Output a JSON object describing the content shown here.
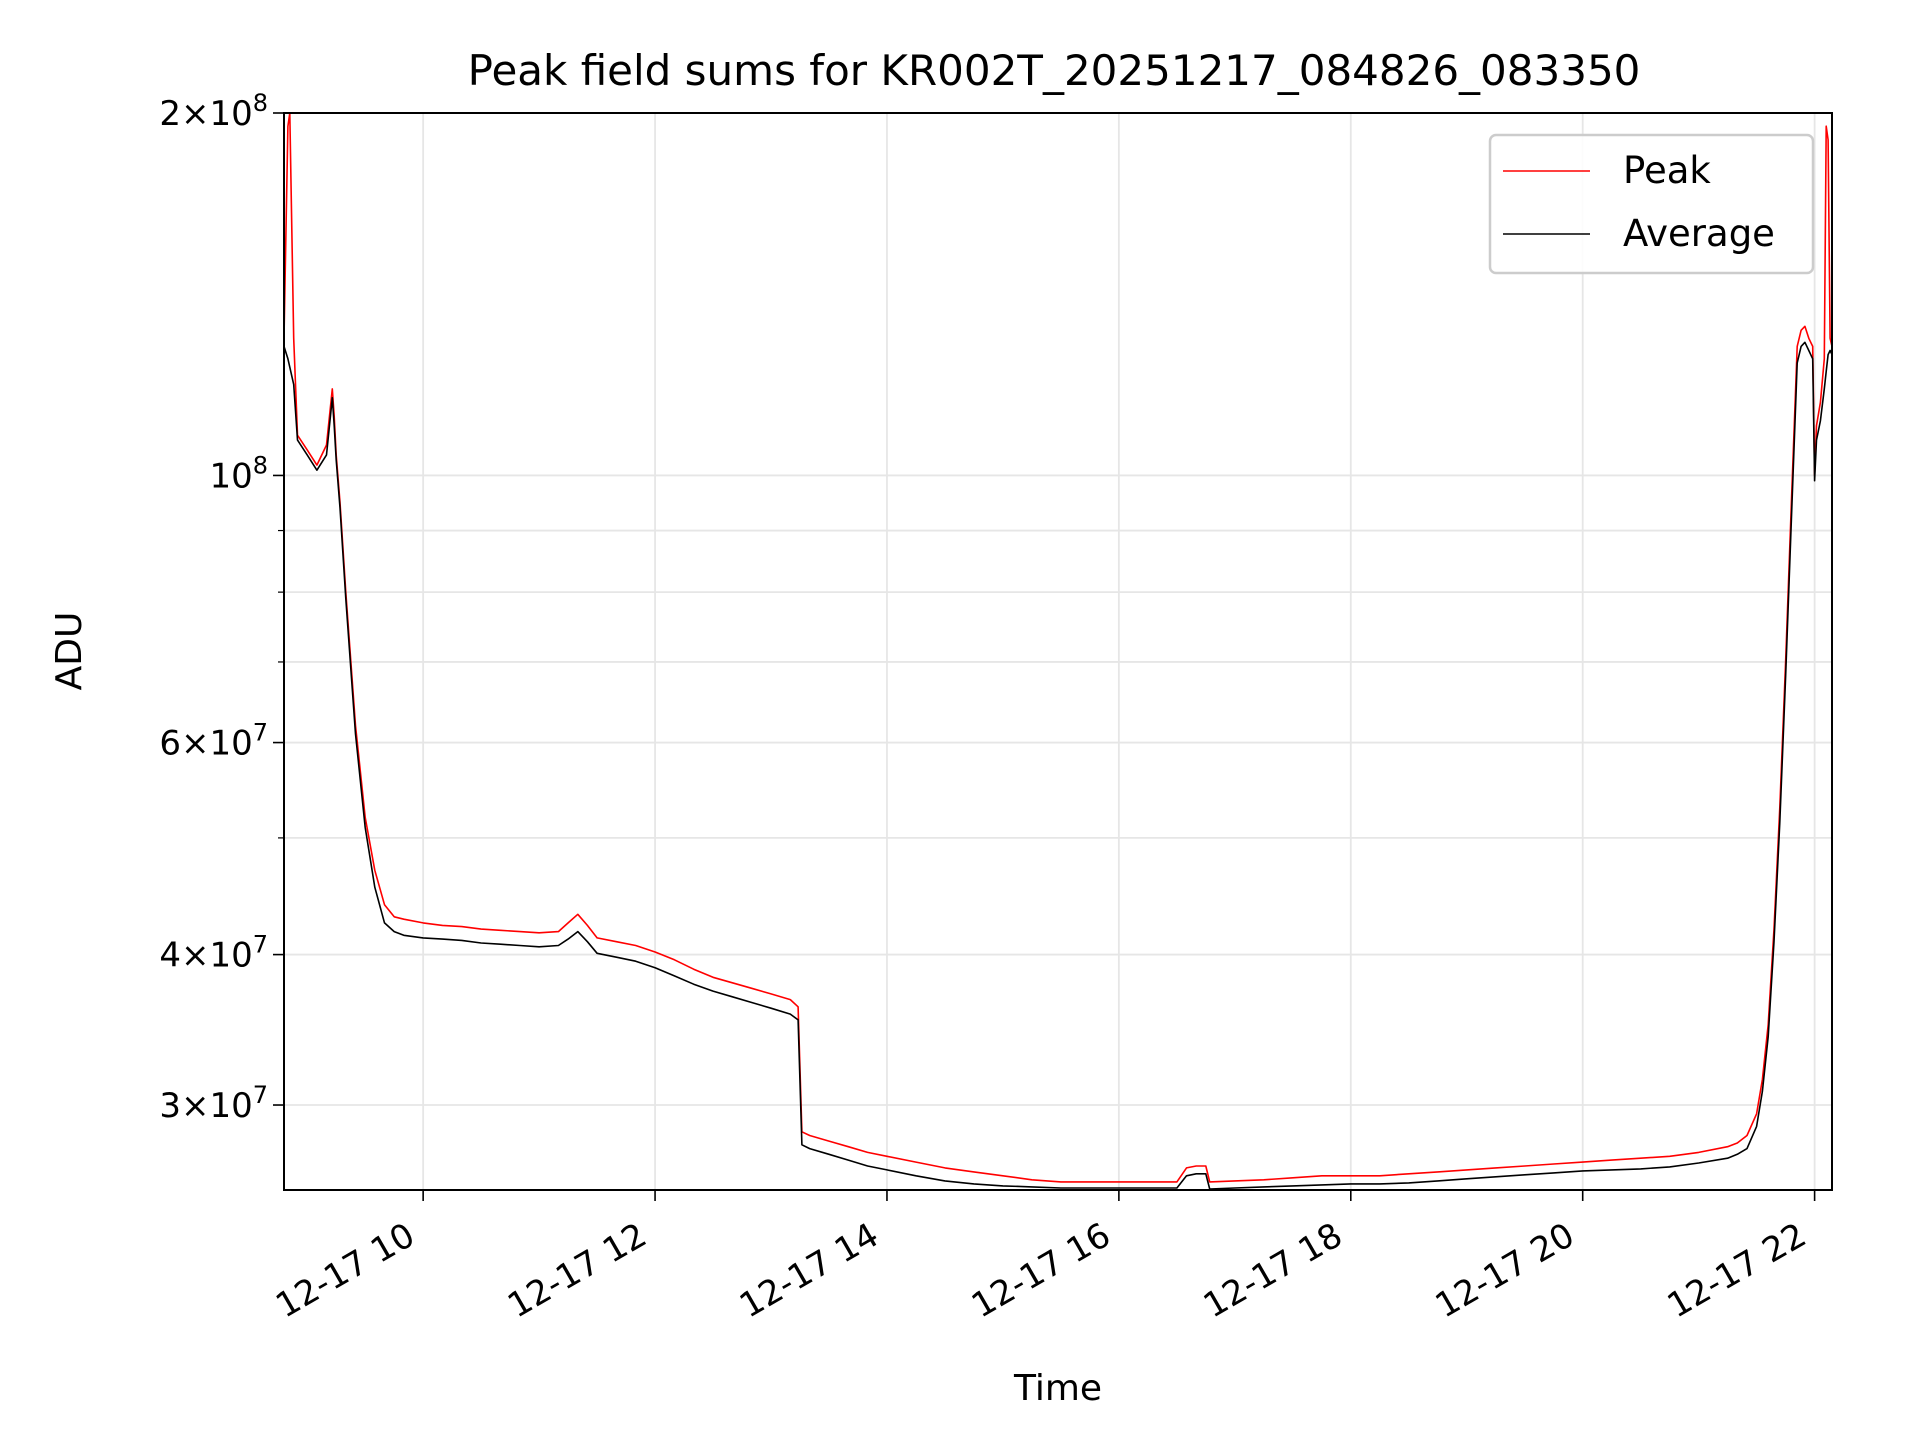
{
  "chart_data": {
    "type": "line",
    "title": "Peak field sums for KR002T_20251217_084826_083350",
    "xlabel": "Time",
    "ylabel": "ADU",
    "y_scale": "log",
    "ylim": [
      25500000,
      200000000
    ],
    "xlim": [
      "2025-12-17 08:48",
      "2025-12-17 22:09"
    ],
    "grid": true,
    "legend_position": "top-right",
    "x_ticks": [
      {
        "t": "2025-12-17 10:00",
        "label": "12-17 10"
      },
      {
        "t": "2025-12-17 12:00",
        "label": "12-17 12"
      },
      {
        "t": "2025-12-17 14:00",
        "label": "12-17 14"
      },
      {
        "t": "2025-12-17 16:00",
        "label": "12-17 16"
      },
      {
        "t": "2025-12-17 18:00",
        "label": "12-17 18"
      },
      {
        "t": "2025-12-17 20:00",
        "label": "12-17 20"
      },
      {
        "t": "2025-12-17 22:00",
        "label": "12-17 22"
      }
    ],
    "y_ticks": [
      {
        "v": 30000000,
        "mantissa": "3",
        "exp": "7"
      },
      {
        "v": 40000000,
        "mantissa": "4",
        "exp": "7"
      },
      {
        "v": 60000000,
        "mantissa": "6",
        "exp": "7"
      },
      {
        "v": 100000000,
        "mantissa": "",
        "exp": "8"
      },
      {
        "v": 200000000,
        "mantissa": "2",
        "exp": "8"
      }
    ],
    "y_minor_ticks": [
      50000000,
      70000000,
      80000000,
      90000000
    ],
    "series": [
      {
        "name": "Peak",
        "color": "#ff0000",
        "x": [
          "2025-12-17 08:48",
          "2025-12-17 08:50",
          "2025-12-17 08:51",
          "2025-12-17 08:53",
          "2025-12-17 08:55",
          "2025-12-17 09:00",
          "2025-12-17 09:05",
          "2025-12-17 09:10",
          "2025-12-17 09:13",
          "2025-12-17 09:14",
          "2025-12-17 09:15",
          "2025-12-17 09:17",
          "2025-12-17 09:20",
          "2025-12-17 09:25",
          "2025-12-17 09:30",
          "2025-12-17 09:35",
          "2025-12-17 09:40",
          "2025-12-17 09:45",
          "2025-12-17 09:50",
          "2025-12-17 10:00",
          "2025-12-17 10:10",
          "2025-12-17 10:20",
          "2025-12-17 10:30",
          "2025-12-17 10:40",
          "2025-12-17 10:50",
          "2025-12-17 11:00",
          "2025-12-17 11:10",
          "2025-12-17 11:15",
          "2025-12-17 11:20",
          "2025-12-17 11:25",
          "2025-12-17 11:30",
          "2025-12-17 11:40",
          "2025-12-17 11:50",
          "2025-12-17 12:00",
          "2025-12-17 12:10",
          "2025-12-17 12:20",
          "2025-12-17 12:30",
          "2025-12-17 12:40",
          "2025-12-17 12:50",
          "2025-12-17 13:00",
          "2025-12-17 13:10",
          "2025-12-17 13:14",
          "2025-12-17 13:16",
          "2025-12-17 13:20",
          "2025-12-17 13:30",
          "2025-12-17 13:40",
          "2025-12-17 13:50",
          "2025-12-17 14:00",
          "2025-12-17 14:15",
          "2025-12-17 14:30",
          "2025-12-17 14:45",
          "2025-12-17 15:00",
          "2025-12-17 15:15",
          "2025-12-17 15:30",
          "2025-12-17 15:45",
          "2025-12-17 16:00",
          "2025-12-17 16:15",
          "2025-12-17 16:30",
          "2025-12-17 16:35",
          "2025-12-17 16:40",
          "2025-12-17 16:45",
          "2025-12-17 16:47",
          "2025-12-17 17:00",
          "2025-12-17 17:15",
          "2025-12-17 17:30",
          "2025-12-17 17:45",
          "2025-12-17 18:00",
          "2025-12-17 18:15",
          "2025-12-17 18:30",
          "2025-12-17 18:45",
          "2025-12-17 19:00",
          "2025-12-17 19:15",
          "2025-12-17 19:30",
          "2025-12-17 19:45",
          "2025-12-17 20:00",
          "2025-12-17 20:15",
          "2025-12-17 20:30",
          "2025-12-17 20:45",
          "2025-12-17 21:00",
          "2025-12-17 21:15",
          "2025-12-17 21:20",
          "2025-12-17 21:25",
          "2025-12-17 21:30",
          "2025-12-17 21:33",
          "2025-12-17 21:36",
          "2025-12-17 21:39",
          "2025-12-17 21:42",
          "2025-12-17 21:45",
          "2025-12-17 21:48",
          "2025-12-17 21:51",
          "2025-12-17 21:53",
          "2025-12-17 21:55",
          "2025-12-17 21:57",
          "2025-12-17 21:59",
          "2025-12-17 22:00",
          "2025-12-17 22:01",
          "2025-12-17 22:03",
          "2025-12-17 22:05",
          "2025-12-17 22:06",
          "2025-12-17 22:07",
          "2025-12-17 22:08",
          "2025-12-17 22:09"
        ],
        "y": [
          130000000,
          195000000,
          200000000,
          130000000,
          108000000,
          105000000,
          102000000,
          106000000,
          118000000,
          112000000,
          104000000,
          95000000,
          80000000,
          62000000,
          52000000,
          47000000,
          44000000,
          43000000,
          42800000,
          42500000,
          42300000,
          42200000,
          42000000,
          41900000,
          41800000,
          41700000,
          41800000,
          42500000,
          43200000,
          42300000,
          41300000,
          41000000,
          40700000,
          40200000,
          39600000,
          38900000,
          38300000,
          37900000,
          37500000,
          37100000,
          36700000,
          36200000,
          28500000,
          28300000,
          28000000,
          27700000,
          27400000,
          27200000,
          26900000,
          26600000,
          26400000,
          26200000,
          26000000,
          25900000,
          25900000,
          25900000,
          25900000,
          25900000,
          26600000,
          26700000,
          26700000,
          25900000,
          25950000,
          26000000,
          26100000,
          26200000,
          26200000,
          26200000,
          26300000,
          26400000,
          26500000,
          26600000,
          26700000,
          26800000,
          26900000,
          27000000,
          27100000,
          27200000,
          27400000,
          27700000,
          27900000,
          28300000,
          29500000,
          31500000,
          35000000,
          42000000,
          53000000,
          70000000,
          95000000,
          128000000,
          132000000,
          133000000,
          130000000,
          128000000,
          100000000,
          110000000,
          115000000,
          125000000,
          195000000,
          190000000,
          130000000,
          128000000
        ]
      },
      {
        "name": "Average",
        "color": "#000000",
        "x": [
          "2025-12-17 08:48",
          "2025-12-17 08:50",
          "2025-12-17 08:51",
          "2025-12-17 08:53",
          "2025-12-17 08:55",
          "2025-12-17 09:00",
          "2025-12-17 09:05",
          "2025-12-17 09:10",
          "2025-12-17 09:13",
          "2025-12-17 09:14",
          "2025-12-17 09:15",
          "2025-12-17 09:17",
          "2025-12-17 09:20",
          "2025-12-17 09:25",
          "2025-12-17 09:30",
          "2025-12-17 09:35",
          "2025-12-17 09:40",
          "2025-12-17 09:45",
          "2025-12-17 09:50",
          "2025-12-17 10:00",
          "2025-12-17 10:10",
          "2025-12-17 10:20",
          "2025-12-17 10:30",
          "2025-12-17 10:40",
          "2025-12-17 10:50",
          "2025-12-17 11:00",
          "2025-12-17 11:10",
          "2025-12-17 11:15",
          "2025-12-17 11:20",
          "2025-12-17 11:25",
          "2025-12-17 11:30",
          "2025-12-17 11:40",
          "2025-12-17 11:50",
          "2025-12-17 12:00",
          "2025-12-17 12:10",
          "2025-12-17 12:20",
          "2025-12-17 12:30",
          "2025-12-17 12:40",
          "2025-12-17 12:50",
          "2025-12-17 13:00",
          "2025-12-17 13:10",
          "2025-12-17 13:14",
          "2025-12-17 13:16",
          "2025-12-17 13:20",
          "2025-12-17 13:30",
          "2025-12-17 13:40",
          "2025-12-17 13:50",
          "2025-12-17 14:00",
          "2025-12-17 14:15",
          "2025-12-17 14:30",
          "2025-12-17 14:45",
          "2025-12-17 15:00",
          "2025-12-17 15:15",
          "2025-12-17 15:30",
          "2025-12-17 15:45",
          "2025-12-17 16:00",
          "2025-12-17 16:15",
          "2025-12-17 16:30",
          "2025-12-17 16:35",
          "2025-12-17 16:40",
          "2025-12-17 16:45",
          "2025-12-17 16:47",
          "2025-12-17 17:00",
          "2025-12-17 17:15",
          "2025-12-17 17:30",
          "2025-12-17 17:45",
          "2025-12-17 18:00",
          "2025-12-17 18:15",
          "2025-12-17 18:30",
          "2025-12-17 18:45",
          "2025-12-17 19:00",
          "2025-12-17 19:15",
          "2025-12-17 19:30",
          "2025-12-17 19:45",
          "2025-12-17 20:00",
          "2025-12-17 20:15",
          "2025-12-17 20:30",
          "2025-12-17 20:45",
          "2025-12-17 21:00",
          "2025-12-17 21:15",
          "2025-12-17 21:20",
          "2025-12-17 21:25",
          "2025-12-17 21:30",
          "2025-12-17 21:33",
          "2025-12-17 21:36",
          "2025-12-17 21:39",
          "2025-12-17 21:42",
          "2025-12-17 21:45",
          "2025-12-17 21:48",
          "2025-12-17 21:51",
          "2025-12-17 21:53",
          "2025-12-17 21:55",
          "2025-12-17 21:57",
          "2025-12-17 21:59",
          "2025-12-17 22:00",
          "2025-12-17 22:01",
          "2025-12-17 22:03",
          "2025-12-17 22:05",
          "2025-12-17 22:06",
          "2025-12-17 22:07",
          "2025-12-17 22:08",
          "2025-12-17 22:09"
        ],
        "y": [
          128000000,
          125000000,
          123000000,
          119000000,
          107000000,
          104000000,
          101000000,
          104000000,
          116000000,
          110000000,
          103000000,
          94000000,
          79000000,
          61000000,
          51000000,
          45500000,
          42500000,
          41800000,
          41500000,
          41300000,
          41200000,
          41100000,
          40900000,
          40800000,
          40700000,
          40600000,
          40700000,
          41200000,
          41800000,
          41000000,
          40100000,
          39800000,
          39500000,
          39000000,
          38400000,
          37800000,
          37300000,
          36900000,
          36500000,
          36100000,
          35700000,
          35300000,
          27800000,
          27600000,
          27300000,
          27000000,
          26700000,
          26500000,
          26200000,
          25950000,
          25800000,
          25700000,
          25650000,
          25600000,
          25600000,
          25600000,
          25600000,
          25600000,
          26200000,
          26300000,
          26300000,
          25550000,
          25600000,
          25650000,
          25700000,
          25750000,
          25800000,
          25800000,
          25850000,
          25950000,
          26050000,
          26150000,
          26250000,
          26350000,
          26450000,
          26500000,
          26550000,
          26650000,
          26850000,
          27100000,
          27300000,
          27600000,
          28800000,
          30800000,
          34200000,
          41000000,
          51500000,
          68000000,
          92000000,
          124000000,
          128000000,
          129000000,
          127000000,
          125000000,
          99000000,
          107000000,
          111000000,
          118000000,
          122000000,
          126000000,
          127000000,
          126000000
        ]
      }
    ]
  }
}
